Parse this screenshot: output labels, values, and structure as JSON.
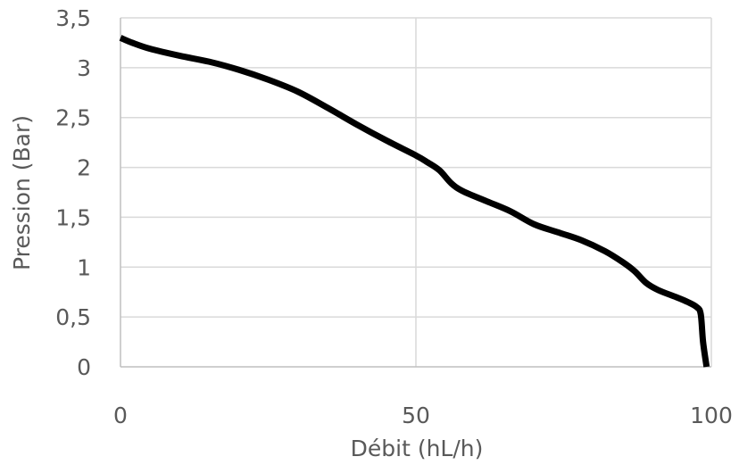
{
  "chart_data": {
    "type": "line",
    "xlabel": "Débit (hL/h)",
    "ylabel": "Pression (Bar)",
    "xlim": [
      0,
      100
    ],
    "ylim": [
      0,
      3.5
    ],
    "xticks": [
      0,
      50,
      100
    ],
    "xtick_labels": [
      "0",
      "50",
      "100"
    ],
    "yticks": [
      0,
      0.5,
      1,
      1.5,
      2,
      2.5,
      3,
      3.5
    ],
    "ytick_labels": [
      "0",
      "0,5",
      "1",
      "1,5",
      "2",
      "2,5",
      "3",
      "3,5"
    ],
    "grid": true,
    "legend": false,
    "colors": {
      "line": "#000000",
      "grid": "#d9d9d9",
      "axis": "#bfbfbf",
      "text": "#595959"
    },
    "series": [
      {
        "x": [
          0,
          2,
          5,
          10,
          15,
          20,
          25,
          30,
          35,
          40,
          45,
          50,
          52,
          54,
          56,
          58,
          62,
          66,
          70,
          74,
          78,
          82,
          85,
          87,
          89,
          91,
          94,
          96,
          97.5,
          98.2,
          98.6,
          99.2
        ],
        "y": [
          3.3,
          3.25,
          3.19,
          3.12,
          3.06,
          2.98,
          2.88,
          2.76,
          2.6,
          2.43,
          2.27,
          2.12,
          2.05,
          1.97,
          1.84,
          1.76,
          1.66,
          1.56,
          1.43,
          1.35,
          1.27,
          1.16,
          1.05,
          0.96,
          0.84,
          0.77,
          0.7,
          0.65,
          0.6,
          0.53,
          0.25,
          0.0
        ]
      }
    ]
  }
}
